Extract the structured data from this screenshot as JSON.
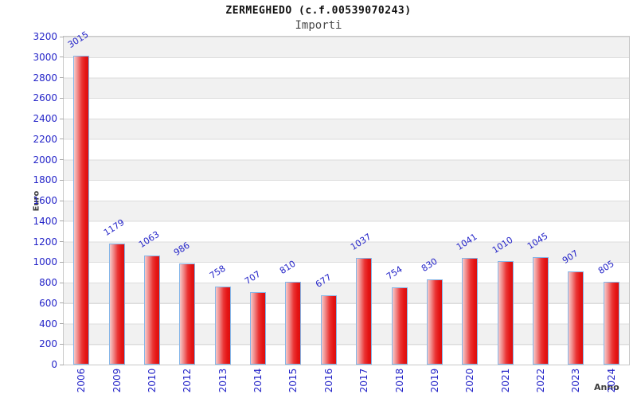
{
  "header": {
    "title": "ZERMEGHEDO (c.f.00539070243)",
    "subtitle": "Importi"
  },
  "chart_data": {
    "type": "bar",
    "title": "ZERMEGHEDO (c.f.00539070243)",
    "subtitle": "Importi",
    "xlabel": "Anno",
    "ylabel": "Euro",
    "categories": [
      "2006",
      "2009",
      "2010",
      "2012",
      "2013",
      "2014",
      "2015",
      "2016",
      "2017",
      "2018",
      "2019",
      "2020",
      "2021",
      "2022",
      "2023",
      "2024"
    ],
    "values": [
      3015,
      1179,
      1063,
      986,
      758,
      707,
      810,
      677,
      1037,
      754,
      830,
      1041,
      1010,
      1045,
      907,
      805
    ],
    "ylim": [
      0,
      3200
    ],
    "ytick_step": 200,
    "yticks": [
      0,
      200,
      400,
      600,
      800,
      1000,
      1200,
      1400,
      1600,
      1800,
      2000,
      2200,
      2400,
      2600,
      2800,
      3000,
      3200
    ],
    "legend": "none",
    "grid": "alternating-horizontal-bands",
    "colors": {
      "bar_fill_light": "#f7c9c9",
      "bar_fill_dark": "#e51515",
      "bar_border": "#85b6e8",
      "tick_label": "#2424c8",
      "band_gray": "#f1f1f1",
      "band_white": "#ffffff",
      "grid_line": "#dcdcdc",
      "plot_border": "#c8c8c8",
      "axis_title": "#3c3c3c",
      "title_color": "#111111",
      "subtitle_color": "#4a4a4a"
    }
  }
}
